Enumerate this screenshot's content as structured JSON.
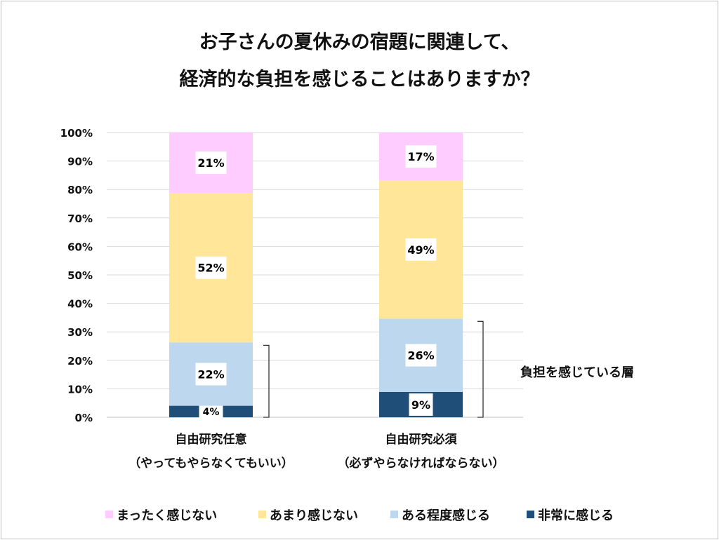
{
  "chart_data": {
    "type": "bar",
    "stacked": true,
    "title_lines": [
      "お子さんの夏休みの宿題に関連して、",
      "経済的な負担を感じることはありますか？"
    ],
    "categories": [
      [
        "自由研究任意",
        "（やってもやらなくてもいい）"
      ],
      [
        "自由研究必須",
        "（必ずやらなければならない）"
      ]
    ],
    "series": [
      {
        "name": "非常に感じる",
        "color": "#1f4e79",
        "values": [
          4,
          9
        ],
        "label_color": "#000"
      },
      {
        "name": "ある程度感じる",
        "color": "#bdd7ee",
        "values": [
          22,
          26
        ]
      },
      {
        "name": "あまり感じない",
        "color": "#ffe699",
        "values": [
          52,
          49
        ]
      },
      {
        "name": "まったく感じない",
        "color": "#ffccff",
        "values": [
          21,
          17
        ]
      }
    ],
    "legend_order": [
      "まったく感じない",
      "あまり感じない",
      "ある程度感じる",
      "非常に感じる"
    ],
    "legend_position": "bottom",
    "yticks": [
      "0%",
      "10%",
      "20%",
      "30%",
      "40%",
      "50%",
      "60%",
      "70%",
      "80%",
      "90%",
      "100%"
    ],
    "ylim": [
      0,
      100
    ],
    "grid": true,
    "annotation": "負担を感じている層"
  }
}
